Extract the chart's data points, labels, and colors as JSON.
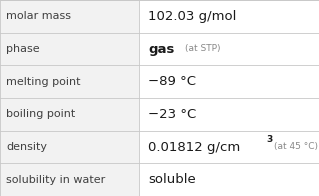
{
  "rows": [
    {
      "label": "molar mass",
      "value": "102.03 g/mol",
      "type": "plain"
    },
    {
      "label": "phase",
      "value_main": "gas",
      "value_sub": "(at STP)",
      "type": "phase"
    },
    {
      "label": "melting point",
      "value": "−89 °C",
      "type": "plain"
    },
    {
      "label": "boiling point",
      "value": "−23 °C",
      "type": "plain"
    },
    {
      "label": "density",
      "value_main": "0.01812 g/cm",
      "value_sup": "3",
      "value_sub": "(at 45 °C)",
      "type": "density"
    },
    {
      "label": "solubility in water",
      "value": "soluble",
      "type": "plain"
    }
  ],
  "col_split": 0.435,
  "bg_color": "#ffffff",
  "left_bg": "#f2f2f2",
  "label_color": "#404040",
  "value_color": "#1a1a1a",
  "sub_color": "#888888",
  "grid_color": "#c8c8c8",
  "label_fontsize": 8.0,
  "value_fontsize": 9.5,
  "sub_fontsize": 6.5,
  "sup_fontsize": 6.5
}
